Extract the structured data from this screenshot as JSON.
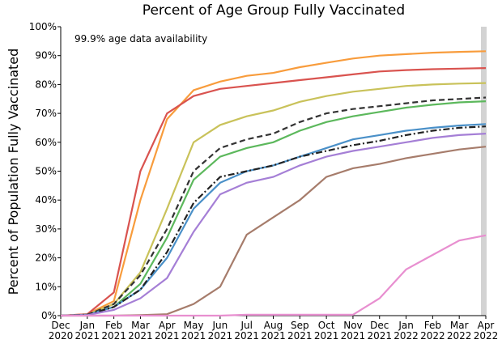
{
  "chart_data": {
    "type": "line",
    "title": "Percent of Age Group Fully Vaccinated",
    "y_label": "Percent of Population Fully Vaccinated",
    "annotation": "99.9% age data availability",
    "categories": [
      "Dec 2020",
      "Jan 2021",
      "Feb 2021",
      "Mar 2021",
      "Apr 2021",
      "May 2021",
      "Jun 2021",
      "Jul 2021",
      "Aug 2021",
      "Sep 2021",
      "Oct 2021",
      "Nov 2021",
      "Dec 2021",
      "Jan 2022",
      "Feb 2022",
      "Mar 2022",
      "Apr 2022"
    ],
    "ylim": [
      0,
      100
    ],
    "yticks": [
      {
        "value": 0,
        "label": "0%"
      },
      {
        "value": 10,
        "label": "10%"
      },
      {
        "value": 20,
        "label": "20%"
      },
      {
        "value": 30,
        "label": "30%"
      },
      {
        "value": 40,
        "label": "40%"
      },
      {
        "value": 50,
        "label": "50%"
      },
      {
        "value": 60,
        "label": "60%"
      },
      {
        "value": 70,
        "label": "70%"
      },
      {
        "value": 80,
        "label": "80%"
      },
      {
        "value": 90,
        "label": "90%"
      },
      {
        "value": 100,
        "label": "100%"
      }
    ],
    "grid": false,
    "series": [
      {
        "color": "#f89c3c",
        "dash": "solid",
        "values": [
          0,
          0.5,
          5,
          40,
          68,
          78,
          81,
          83,
          84,
          86,
          87.5,
          89,
          90,
          90.5,
          91,
          91.3,
          91.5
        ]
      },
      {
        "color": "#d9534f",
        "dash": "solid",
        "values": [
          0,
          0.5,
          8,
          50,
          70,
          76,
          78.5,
          79.5,
          80.5,
          81.5,
          82.5,
          83.5,
          84.5,
          85,
          85.3,
          85.5,
          85.7
        ]
      },
      {
        "color": "#c9c25a",
        "dash": "solid",
        "values": [
          0,
          0.3,
          4,
          15,
          37,
          60,
          66,
          69,
          71,
          74,
          76,
          77.5,
          78.5,
          79.5,
          80,
          80.3,
          80.5
        ]
      },
      {
        "color": "#333333",
        "dash": "dashed",
        "values": [
          0,
          0.3,
          4,
          14,
          30,
          50,
          58,
          61,
          63,
          67,
          70,
          71.5,
          72.5,
          73.5,
          74.5,
          75,
          75.5
        ]
      },
      {
        "color": "#5cb85c",
        "dash": "solid",
        "values": [
          0,
          0.3,
          3,
          11,
          27,
          47,
          55,
          58,
          60,
          64,
          67,
          69,
          70.5,
          72,
          73,
          73.8,
          74.2
        ]
      },
      {
        "color": "#4a90c8",
        "dash": "solid",
        "values": [
          0,
          0.3,
          3,
          9,
          20,
          37,
          46,
          50,
          52,
          55,
          58,
          61,
          62.5,
          64,
          65,
          65.8,
          66.3
        ]
      },
      {
        "color": "#222222",
        "dash": "dashdot",
        "values": [
          0,
          0.3,
          3,
          9,
          22,
          39,
          48,
          50,
          52,
          55,
          57,
          59,
          60.5,
          62.5,
          64,
          65,
          65.5
        ]
      },
      {
        "color": "#a57fd6",
        "dash": "solid",
        "values": [
          0,
          0.2,
          2,
          6,
          13,
          29,
          42,
          46,
          48,
          52,
          55,
          57,
          58.5,
          60,
          61.5,
          62.5,
          63
        ]
      },
      {
        "color": "#a67c6b",
        "dash": "solid",
        "values": [
          0,
          0,
          0,
          0.2,
          0.5,
          4,
          10,
          28,
          34,
          40,
          48,
          51,
          52.5,
          54.5,
          56,
          57.5,
          58.5
        ]
      },
      {
        "color": "#e88fd0",
        "dash": "solid",
        "values": [
          0,
          0,
          0,
          0,
          0,
          0,
          0,
          0.3,
          0.3,
          0.3,
          0.3,
          0.3,
          6,
          16,
          21,
          26,
          27.8
        ]
      }
    ]
  }
}
